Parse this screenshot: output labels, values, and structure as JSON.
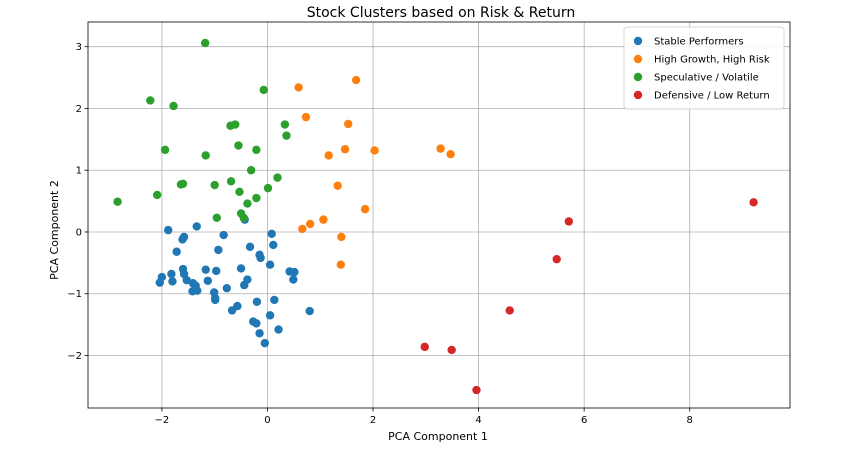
{
  "chart_data": {
    "type": "scatter",
    "title": "Stock Clusters based on Risk & Return",
    "xlabel": "PCA Component 1",
    "ylabel": "PCA Component 2",
    "xlim": [
      -3.4,
      9.9
    ],
    "ylim": [
      -2.85,
      3.4
    ],
    "xticks": [
      -2,
      0,
      2,
      4,
      6,
      8
    ],
    "yticks": [
      -2,
      -1,
      0,
      1,
      2,
      3
    ],
    "grid": true,
    "legend_position": "top-right",
    "series": [
      {
        "name": "Stable Performers",
        "color": "#1f77b4",
        "points": [
          [
            -1.88,
            0.03
          ],
          [
            -1.34,
            0.09
          ],
          [
            -1.58,
            -0.08
          ],
          [
            -1.61,
            -0.12
          ],
          [
            -1.72,
            -0.32
          ],
          [
            -0.83,
            -0.05
          ],
          [
            -0.43,
            0.2
          ],
          [
            -0.33,
            -0.24
          ],
          [
            -0.15,
            -0.37
          ],
          [
            -0.13,
            -0.42
          ],
          [
            0.08,
            -0.03
          ],
          [
            0.11,
            -0.21
          ],
          [
            0.05,
            -0.53
          ],
          [
            -2.0,
            -0.73
          ],
          [
            -2.04,
            -0.82
          ],
          [
            -1.82,
            -0.68
          ],
          [
            -1.8,
            -0.8
          ],
          [
            -1.6,
            -0.6
          ],
          [
            -1.58,
            -0.68
          ],
          [
            -1.53,
            -0.78
          ],
          [
            -1.41,
            -0.83
          ],
          [
            -1.36,
            -0.87
          ],
          [
            -1.17,
            -0.61
          ],
          [
            -0.97,
            -0.63
          ],
          [
            -0.93,
            -0.29
          ],
          [
            -1.13,
            -0.79
          ],
          [
            -1.01,
            -0.98
          ],
          [
            -0.99,
            -1.07
          ],
          [
            -0.99,
            -1.1
          ],
          [
            -1.37,
            -0.93
          ],
          [
            -1.33,
            -0.95
          ],
          [
            -1.42,
            -0.96
          ],
          [
            -0.77,
            -0.91
          ],
          [
            -0.5,
            -0.59
          ],
          [
            -0.38,
            -0.77
          ],
          [
            -0.44,
            -0.86
          ],
          [
            -0.67,
            -1.27
          ],
          [
            -0.57,
            -1.2
          ],
          [
            -0.27,
            -1.45
          ],
          [
            -0.21,
            -1.48
          ],
          [
            -0.2,
            -1.13
          ],
          [
            0.13,
            -1.1
          ],
          [
            0.05,
            -1.35
          ],
          [
            -0.15,
            -1.64
          ],
          [
            -0.05,
            -1.8
          ],
          [
            0.21,
            -1.58
          ],
          [
            0.42,
            -0.64
          ],
          [
            0.51,
            -0.65
          ],
          [
            0.49,
            -0.77
          ],
          [
            0.8,
            -1.28
          ]
        ]
      },
      {
        "name": "High Growth, High Risk",
        "color": "#ff7f0e",
        "points": [
          [
            0.59,
            2.34
          ],
          [
            1.68,
            2.46
          ],
          [
            0.73,
            1.86
          ],
          [
            1.53,
            1.75
          ],
          [
            1.47,
            1.34
          ],
          [
            1.16,
            1.24
          ],
          [
            2.03,
            1.32
          ],
          [
            3.28,
            1.35
          ],
          [
            3.47,
            1.26
          ],
          [
            1.33,
            0.75
          ],
          [
            1.85,
            0.37
          ],
          [
            1.06,
            0.2
          ],
          [
            0.81,
            0.13
          ],
          [
            0.66,
            0.05
          ],
          [
            1.4,
            -0.08
          ],
          [
            1.39,
            -0.53
          ]
        ]
      },
      {
        "name": "Speculative / Volatile",
        "color": "#2ca02c",
        "points": [
          [
            -1.18,
            3.06
          ],
          [
            -2.22,
            2.13
          ],
          [
            -1.78,
            2.04
          ],
          [
            -0.07,
            2.3
          ],
          [
            -0.61,
            1.74
          ],
          [
            -0.7,
            1.72
          ],
          [
            0.33,
            1.74
          ],
          [
            0.36,
            1.56
          ],
          [
            -1.94,
            1.33
          ],
          [
            -1.17,
            1.24
          ],
          [
            -0.55,
            1.4
          ],
          [
            -0.21,
            1.33
          ],
          [
            -0.31,
            1.0
          ],
          [
            0.19,
            0.88
          ],
          [
            -1.6,
            0.78
          ],
          [
            -1.64,
            0.77
          ],
          [
            -1.0,
            0.76
          ],
          [
            -0.69,
            0.82
          ],
          [
            -0.53,
            0.65
          ],
          [
            -0.21,
            0.55
          ],
          [
            0.01,
            0.71
          ],
          [
            -2.09,
            0.6
          ],
          [
            -2.84,
            0.49
          ],
          [
            -0.38,
            0.46
          ],
          [
            -0.5,
            0.3
          ],
          [
            -0.96,
            0.23
          ],
          [
            -0.45,
            0.23
          ]
        ]
      },
      {
        "name": "Defensive / Low Return",
        "color": "#d62728",
        "points": [
          [
            9.21,
            0.48
          ],
          [
            5.71,
            0.17
          ],
          [
            5.48,
            -0.44
          ],
          [
            4.59,
            -1.27
          ],
          [
            2.98,
            -1.86
          ],
          [
            3.49,
            -1.91
          ],
          [
            3.96,
            -2.56
          ]
        ]
      }
    ]
  }
}
